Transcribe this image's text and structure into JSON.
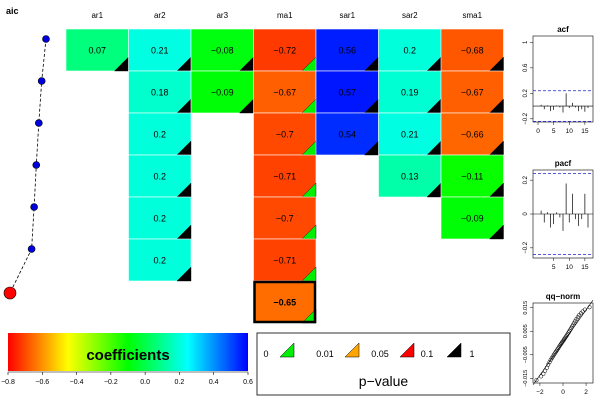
{
  "chart_data": [
    {
      "type": "heatmap",
      "aic_label": "aic",
      "columns": [
        "ar1",
        "ar2",
        "ar3",
        "ma1",
        "sar1",
        "sar2",
        "sma1"
      ],
      "rows": [
        {
          "values": [
            0.07,
            0.21,
            -0.08,
            -0.72,
            0.56,
            0.2,
            -0.68
          ],
          "pvalues": [
            3,
            3,
            3,
            0,
            3,
            3,
            3
          ],
          "aic": 0.0
        },
        {
          "values": [
            null,
            0.18,
            -0.09,
            -0.67,
            0.57,
            0.19,
            -0.67
          ],
          "pvalues": [
            null,
            3,
            3,
            0,
            3,
            3,
            3
          ],
          "aic": 0.12
        },
        {
          "values": [
            null,
            0.2,
            null,
            -0.7,
            0.54,
            0.21,
            -0.66
          ],
          "pvalues": [
            null,
            3,
            null,
            0,
            3,
            3,
            3
          ],
          "aic": 0.2
        },
        {
          "values": [
            null,
            0.2,
            null,
            -0.71,
            null,
            0.13,
            -0.11
          ],
          "pvalues": [
            null,
            3,
            null,
            0,
            null,
            3,
            3
          ],
          "aic": 0.27
        },
        {
          "values": [
            null,
            0.2,
            null,
            -0.7,
            null,
            null,
            -0.09
          ],
          "pvalues": [
            null,
            3,
            null,
            0,
            null,
            null,
            3
          ],
          "aic": 0.33
        },
        {
          "values": [
            null,
            0.2,
            null,
            -0.71,
            null,
            null,
            null
          ],
          "pvalues": [
            null,
            3,
            null,
            0,
            null,
            null,
            null
          ],
          "aic": 0.4
        },
        {
          "values": [
            null,
            null,
            null,
            -0.65,
            null,
            null,
            null
          ],
          "pvalues": [
            null,
            null,
            null,
            0,
            null,
            null,
            null
          ],
          "aic": 1.0
        }
      ],
      "selected": {
        "row": 6,
        "col": 3
      },
      "colorbar": {
        "label": "coefficients",
        "range": [
          -0.8,
          0.6
        ],
        "ticks": [
          "−0.8",
          "−0.6",
          "−0.4",
          "−0.2",
          "0.0",
          "0.2",
          "0.4",
          "0.6"
        ]
      },
      "pvalue_legend": {
        "title": "p−value",
        "breaks": [
          "0",
          "0.01",
          "0.05",
          "0.1",
          "1"
        ],
        "colors": [
          "#00ee00",
          "#ffa500",
          "#ff0000",
          "#000000"
        ]
      }
    },
    {
      "type": "bar",
      "title": "acf",
      "x": [
        1,
        2,
        3,
        4,
        5,
        6,
        7,
        8,
        9,
        10,
        11,
        12,
        13,
        14,
        15,
        16
      ],
      "values": [
        0.02,
        -0.05,
        0.01,
        -0.08,
        -0.06,
        0.01,
        -0.02,
        -0.1,
        0.2,
        -0.03,
        0.05,
        -0.02,
        -0.08,
        -0.05,
        -0.09,
        -0.03
      ],
      "ylim": [
        -0.25,
        1.1
      ],
      "yticks": [
        -0.2,
        0.2,
        0.6,
        1.0
      ],
      "xticks": [
        0,
        5,
        10,
        15
      ],
      "conf": 0.24
    },
    {
      "type": "bar",
      "title": "pacf",
      "x": [
        1,
        2,
        3,
        4,
        5,
        6,
        7,
        8,
        9,
        10,
        11,
        12,
        13,
        14,
        15,
        16
      ],
      "values": [
        0.02,
        -0.05,
        0.01,
        -0.08,
        -0.06,
        0.01,
        -0.02,
        -0.1,
        0.18,
        -0.05,
        0.12,
        -0.03,
        -0.07,
        -0.03,
        0.12,
        -0.08
      ],
      "ylim": [
        -0.26,
        0.26
      ],
      "yticks": [
        -0.2,
        0.0,
        0.2
      ],
      "xticks": [
        5,
        10,
        15
      ],
      "conf": 0.24
    },
    {
      "type": "scatter",
      "title": "qq−norm",
      "xlim": [
        -2.6,
        2.6
      ],
      "ylim": [
        -0.017,
        0.017
      ],
      "xticks": [
        -2,
        0,
        2
      ],
      "yticks": [
        -0.015,
        -0.005,
        0.005,
        0.015
      ],
      "ytick_labels": [
        "−0.015",
        "−0.005",
        "0.005",
        "0.015"
      ],
      "xtick_labels": [
        "−2",
        "0",
        "2"
      ],
      "points": [
        [
          -2.3,
          -0.0158
        ],
        [
          -1.9,
          -0.0142
        ],
        [
          -1.7,
          -0.0131
        ],
        [
          -1.55,
          -0.0118
        ],
        [
          -1.4,
          -0.0105
        ],
        [
          -1.28,
          -0.0092
        ],
        [
          -1.17,
          -0.0082
        ],
        [
          -1.07,
          -0.0072
        ],
        [
          -0.98,
          -0.0065
        ],
        [
          -0.89,
          -0.0058
        ],
        [
          -0.8,
          -0.0051
        ],
        [
          -0.72,
          -0.0045
        ],
        [
          -0.64,
          -0.0039
        ],
        [
          -0.56,
          -0.0033
        ],
        [
          -0.49,
          -0.0028
        ],
        [
          -0.41,
          -0.0022
        ],
        [
          -0.34,
          -0.0016
        ],
        [
          -0.27,
          -0.0011
        ],
        [
          -0.2,
          -0.0006
        ],
        [
          -0.13,
          -0.0001
        ],
        [
          -0.07,
          0.0004
        ],
        [
          0.0,
          0.0008
        ],
        [
          0.07,
          0.0013
        ],
        [
          0.13,
          0.0018
        ],
        [
          0.2,
          0.0023
        ],
        [
          0.27,
          0.0028
        ],
        [
          0.34,
          0.0033
        ],
        [
          0.41,
          0.0039
        ],
        [
          0.49,
          0.0045
        ],
        [
          0.56,
          0.0051
        ],
        [
          0.64,
          0.0057
        ],
        [
          0.72,
          0.0064
        ],
        [
          0.8,
          0.0071
        ],
        [
          0.89,
          0.0078
        ],
        [
          0.98,
          0.0086
        ],
        [
          1.07,
          0.0094
        ],
        [
          1.17,
          0.0102
        ],
        [
          1.28,
          0.011
        ],
        [
          1.4,
          0.0118
        ],
        [
          1.55,
          0.0126
        ],
        [
          1.7,
          0.0134
        ],
        [
          1.9,
          0.0142
        ],
        [
          2.3,
          0.0152
        ]
      ]
    }
  ]
}
